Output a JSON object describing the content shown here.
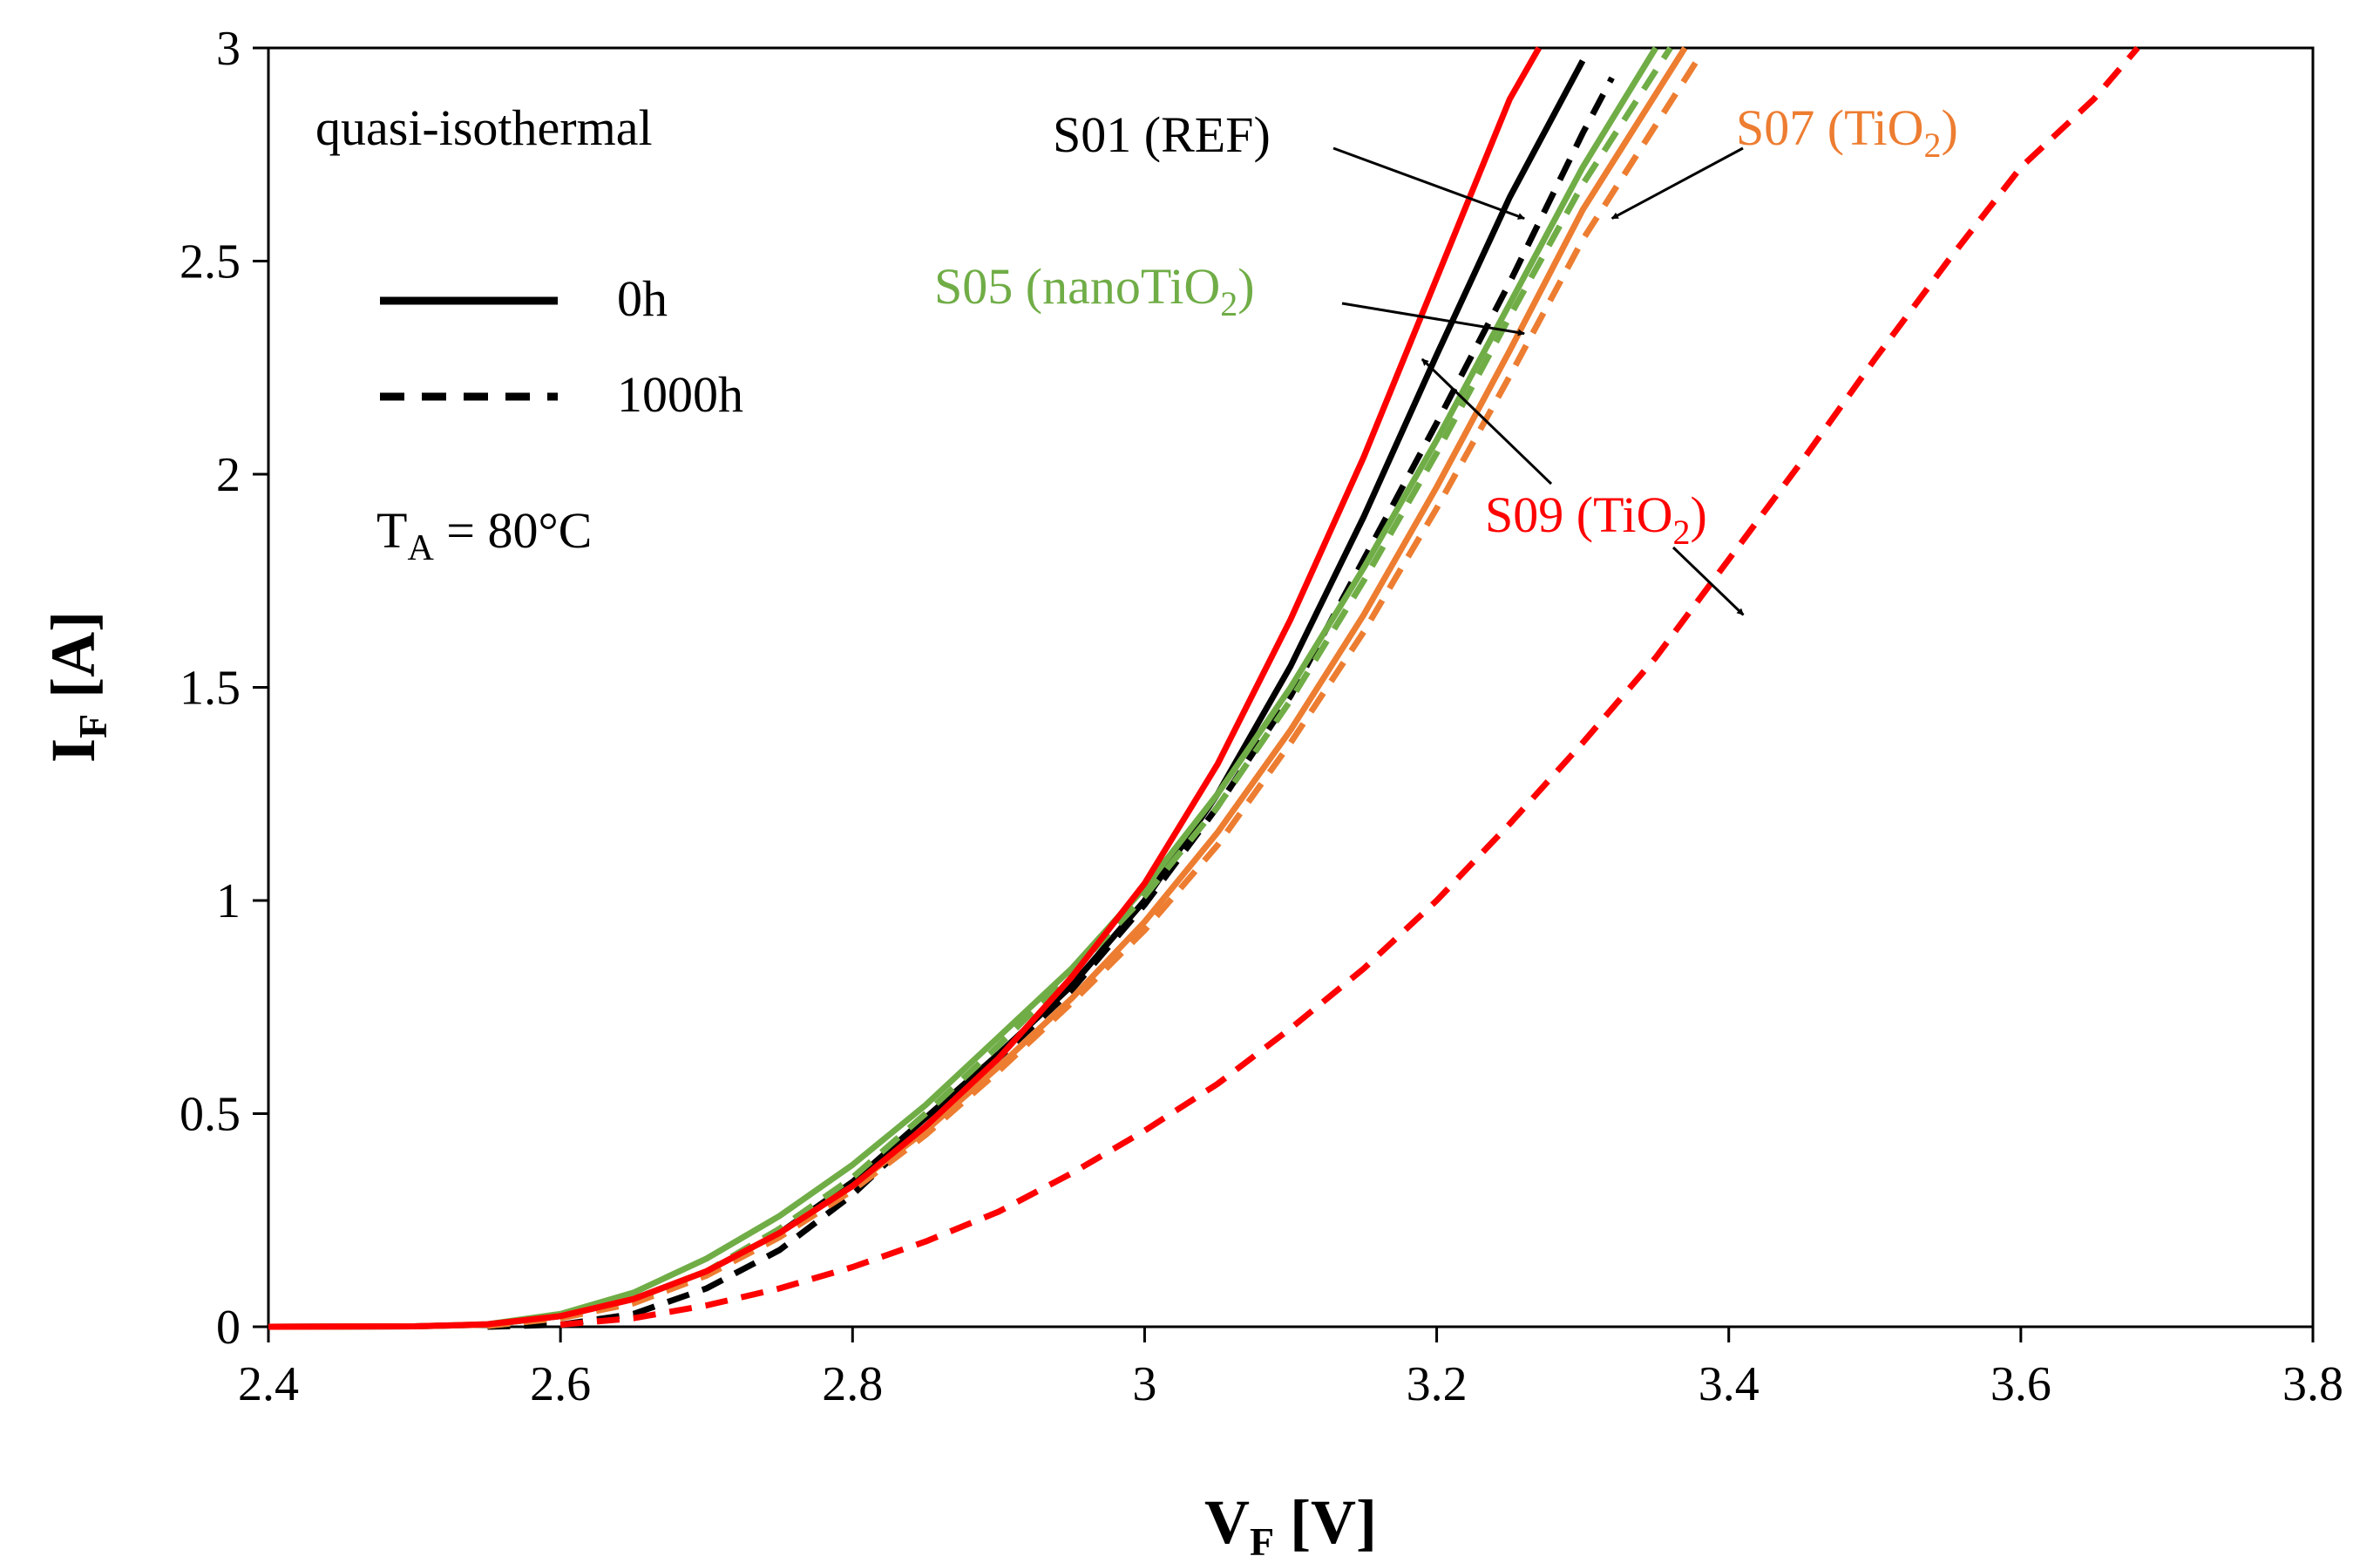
{
  "chart_data": {
    "type": "line",
    "title": "",
    "xlabel": {
      "main": "V",
      "sub": "F",
      "unit": " [V]"
    },
    "ylabel": {
      "main": "I",
      "sub": "F",
      "unit": " [A]"
    },
    "xlim": [
      2.4,
      3.8
    ],
    "ylim": [
      0,
      3
    ],
    "x_ticks": [
      "2.4",
      "2.6",
      "2.8",
      "3",
      "3.2",
      "3.4",
      "3.6",
      "3.8"
    ],
    "y_ticks": [
      "0",
      "0.5",
      "1",
      "1.5",
      "2",
      "2.5",
      "3"
    ],
    "grid": false,
    "condition_label": "quasi-isothermal",
    "temperature_label": {
      "main": "T",
      "sub": "A",
      "rest": " = 80°C"
    },
    "legend": {
      "position": "top-left",
      "entries": [
        {
          "label": "0h",
          "style": "solid"
        },
        {
          "label": "1000h",
          "style": "dashed"
        }
      ]
    },
    "colors": {
      "black": "#000000",
      "red": "#ff0000",
      "green": "#70ad47",
      "orange": "#ed7d31"
    },
    "series": [
      {
        "name": "S01 (REF) 0h",
        "sample": "S01",
        "color": "#000000",
        "style": "solid",
        "points": [
          [
            2.4,
            0
          ],
          [
            2.5,
            0.001
          ],
          [
            2.55,
            0.005
          ],
          [
            2.6,
            0.025
          ],
          [
            2.65,
            0.065
          ],
          [
            2.7,
            0.13
          ],
          [
            2.75,
            0.22
          ],
          [
            2.8,
            0.34
          ],
          [
            2.85,
            0.49
          ],
          [
            2.9,
            0.64
          ],
          [
            2.95,
            0.8
          ],
          [
            3.0,
            1.0
          ],
          [
            3.05,
            1.25
          ],
          [
            3.1,
            1.55
          ],
          [
            3.15,
            1.9
          ],
          [
            3.2,
            2.28
          ],
          [
            3.25,
            2.65
          ],
          [
            3.3,
            2.97
          ]
        ]
      },
      {
        "name": "S01 (REF) 1000h",
        "sample": "S01",
        "color": "#000000",
        "style": "dashed",
        "points": [
          [
            2.55,
            0
          ],
          [
            2.6,
            0.005
          ],
          [
            2.65,
            0.03
          ],
          [
            2.7,
            0.09
          ],
          [
            2.75,
            0.18
          ],
          [
            2.8,
            0.31
          ],
          [
            2.85,
            0.47
          ],
          [
            2.9,
            0.63
          ],
          [
            2.95,
            0.79
          ],
          [
            3.0,
            0.99
          ],
          [
            3.05,
            1.22
          ],
          [
            3.1,
            1.48
          ],
          [
            3.15,
            1.8
          ],
          [
            3.2,
            2.12
          ],
          [
            3.25,
            2.45
          ],
          [
            3.3,
            2.8
          ],
          [
            3.32,
            2.93
          ]
        ]
      },
      {
        "name": "S05 (nanoTiO2) 0h",
        "sample": "S05",
        "color": "#70ad47",
        "style": "solid",
        "points": [
          [
            2.4,
            0
          ],
          [
            2.5,
            0.001
          ],
          [
            2.55,
            0.006
          ],
          [
            2.6,
            0.03
          ],
          [
            2.65,
            0.08
          ],
          [
            2.7,
            0.16
          ],
          [
            2.75,
            0.26
          ],
          [
            2.8,
            0.38
          ],
          [
            2.85,
            0.52
          ],
          [
            2.9,
            0.68
          ],
          [
            2.95,
            0.84
          ],
          [
            3.0,
            1.03
          ],
          [
            3.05,
            1.25
          ],
          [
            3.1,
            1.5
          ],
          [
            3.15,
            1.78
          ],
          [
            3.2,
            2.08
          ],
          [
            3.25,
            2.4
          ],
          [
            3.3,
            2.72
          ],
          [
            3.35,
            3.0
          ]
        ]
      },
      {
        "name": "S05 (nanoTiO2) 1000h",
        "sample": "S05",
        "color": "#70ad47",
        "style": "dashed",
        "points": [
          [
            2.55,
            0.002
          ],
          [
            2.6,
            0.02
          ],
          [
            2.65,
            0.06
          ],
          [
            2.7,
            0.13
          ],
          [
            2.75,
            0.23
          ],
          [
            2.8,
            0.35
          ],
          [
            2.85,
            0.5
          ],
          [
            2.9,
            0.66
          ],
          [
            2.95,
            0.83
          ],
          [
            3.0,
            1.01
          ],
          [
            3.05,
            1.22
          ],
          [
            3.1,
            1.47
          ],
          [
            3.15,
            1.75
          ],
          [
            3.2,
            2.05
          ],
          [
            3.25,
            2.37
          ],
          [
            3.3,
            2.68
          ],
          [
            3.36,
            3.0
          ]
        ]
      },
      {
        "name": "S07 (TiO2) 0h",
        "sample": "S07",
        "color": "#ed7d31",
        "style": "solid",
        "points": [
          [
            2.4,
            0
          ],
          [
            2.5,
            0.001
          ],
          [
            2.55,
            0.005
          ],
          [
            2.6,
            0.025
          ],
          [
            2.65,
            0.065
          ],
          [
            2.7,
            0.13
          ],
          [
            2.75,
            0.22
          ],
          [
            2.8,
            0.33
          ],
          [
            2.85,
            0.46
          ],
          [
            2.9,
            0.61
          ],
          [
            2.95,
            0.77
          ],
          [
            3.0,
            0.95
          ],
          [
            3.05,
            1.16
          ],
          [
            3.1,
            1.4
          ],
          [
            3.15,
            1.67
          ],
          [
            3.2,
            1.97
          ],
          [
            3.25,
            2.29
          ],
          [
            3.3,
            2.62
          ],
          [
            3.37,
            3.0
          ]
        ]
      },
      {
        "name": "S07 (TiO2) 1000h",
        "sample": "S07",
        "color": "#ed7d31",
        "style": "dashed",
        "points": [
          [
            2.55,
            0.002
          ],
          [
            2.6,
            0.02
          ],
          [
            2.65,
            0.055
          ],
          [
            2.7,
            0.12
          ],
          [
            2.75,
            0.21
          ],
          [
            2.8,
            0.32
          ],
          [
            2.85,
            0.45
          ],
          [
            2.9,
            0.6
          ],
          [
            2.95,
            0.76
          ],
          [
            3.0,
            0.93
          ],
          [
            3.05,
            1.13
          ],
          [
            3.1,
            1.37
          ],
          [
            3.15,
            1.63
          ],
          [
            3.2,
            1.92
          ],
          [
            3.25,
            2.23
          ],
          [
            3.3,
            2.55
          ],
          [
            3.38,
            2.98
          ]
        ]
      },
      {
        "name": "S09 (TiO2) 0h",
        "sample": "S09",
        "color": "#ff0000",
        "style": "solid",
        "points": [
          [
            2.4,
            0
          ],
          [
            2.5,
            0.001
          ],
          [
            2.55,
            0.006
          ],
          [
            2.6,
            0.025
          ],
          [
            2.65,
            0.065
          ],
          [
            2.7,
            0.13
          ],
          [
            2.75,
            0.22
          ],
          [
            2.8,
            0.33
          ],
          [
            2.85,
            0.47
          ],
          [
            2.9,
            0.63
          ],
          [
            2.95,
            0.82
          ],
          [
            3.0,
            1.04
          ],
          [
            3.05,
            1.32
          ],
          [
            3.1,
            1.66
          ],
          [
            3.15,
            2.04
          ],
          [
            3.2,
            2.46
          ],
          [
            3.25,
            2.88
          ],
          [
            3.27,
            3.0
          ]
        ]
      },
      {
        "name": "S09 (TiO2) 1000h",
        "sample": "S09",
        "color": "#ff0000",
        "style": "dashed",
        "points": [
          [
            2.6,
            0.005
          ],
          [
            2.65,
            0.02
          ],
          [
            2.7,
            0.05
          ],
          [
            2.75,
            0.09
          ],
          [
            2.8,
            0.14
          ],
          [
            2.85,
            0.2
          ],
          [
            2.9,
            0.27
          ],
          [
            2.95,
            0.36
          ],
          [
            3.0,
            0.46
          ],
          [
            3.05,
            0.57
          ],
          [
            3.1,
            0.7
          ],
          [
            3.15,
            0.84
          ],
          [
            3.2,
            1.0
          ],
          [
            3.25,
            1.18
          ],
          [
            3.3,
            1.37
          ],
          [
            3.35,
            1.57
          ],
          [
            3.4,
            1.8
          ],
          [
            3.45,
            2.03
          ],
          [
            3.5,
            2.27
          ],
          [
            3.55,
            2.5
          ],
          [
            3.6,
            2.72
          ],
          [
            3.65,
            2.88
          ],
          [
            3.68,
            3.0
          ]
        ]
      }
    ],
    "annotations": [
      {
        "id": "s01",
        "text": "S01 (REF)",
        "sub": "",
        "tail": "",
        "color": "#000000",
        "arrow_to": [
          3.26,
          2.6
        ]
      },
      {
        "id": "s05",
        "text": "S05 (nanoTiO",
        "sub": "2",
        "tail": ")",
        "color": "#70ad47",
        "arrow_to": [
          3.26,
          2.33
        ]
      },
      {
        "id": "s07",
        "text": "S07 (TiO",
        "sub": "2",
        "tail": ")",
        "color": "#ed7d31",
        "arrow_to": [
          3.32,
          2.6
        ]
      },
      {
        "id": "s09a",
        "text": "S09 (TiO",
        "sub": "2",
        "tail": ")",
        "color": "#ff0000",
        "arrow_to": [
          3.19,
          2.27
        ]
      },
      {
        "id": "s09b",
        "text": "",
        "sub": "",
        "tail": "",
        "color": "#ff0000",
        "arrow_to": [
          3.41,
          1.67
        ]
      }
    ]
  }
}
